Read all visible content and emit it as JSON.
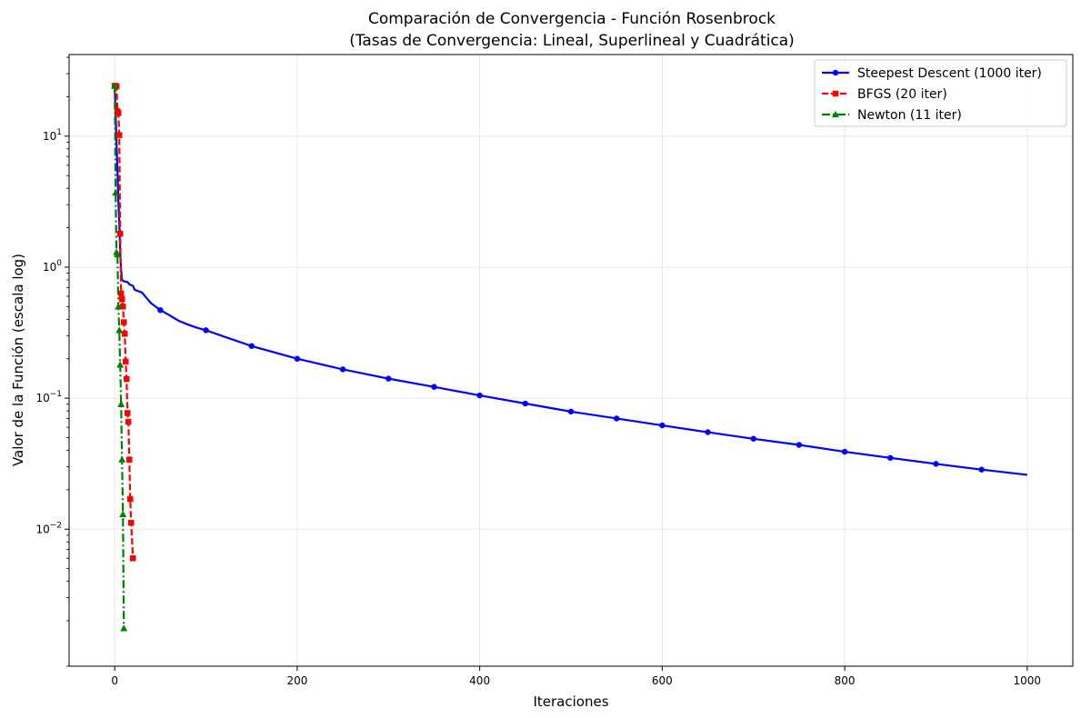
{
  "chart_data": {
    "type": "line",
    "title": "Comparación de Convergencia - Función Rosenbrock",
    "subtitle": "(Tasas de Convergencia: Lineal, Superlineal y Cuadrática)",
    "xlabel": "Iteraciones",
    "ylabel": "Valor de la Función (escala log)",
    "xlim": [
      -50,
      1050
    ],
    "ylim": [
      0.0009,
      42
    ],
    "yscale": "log",
    "grid": true,
    "legend_position": "top-right",
    "x_ticks": [
      0,
      200,
      400,
      600,
      800,
      1000
    ],
    "x_tick_labels": [
      "0",
      "200",
      "400",
      "600",
      "800",
      "1000"
    ],
    "y_ticks": [
      0.01,
      0.1,
      1,
      10
    ],
    "y_tick_labels": [
      "10",
      "10",
      "10",
      "10"
    ],
    "y_tick_exponents": [
      "−2",
      "−1",
      "0",
      "1"
    ],
    "series": [
      {
        "name": "Steepest Descent (1000 iter)",
        "color": "#0000ff",
        "linestyle": "solid",
        "marker": "circle",
        "line": [
          [
            0,
            24.2
          ],
          [
            1,
            15
          ],
          [
            2,
            9
          ],
          [
            3,
            5.5
          ],
          [
            4,
            3.2
          ],
          [
            5,
            2.2
          ],
          [
            6,
            1.3
          ],
          [
            7,
            0.95
          ],
          [
            8,
            0.8
          ],
          [
            10,
            0.78
          ],
          [
            14,
            0.77
          ],
          [
            16,
            0.74
          ],
          [
            20,
            0.72
          ],
          [
            22,
            0.67
          ],
          [
            25,
            0.66
          ],
          [
            30,
            0.64
          ],
          [
            35,
            0.58
          ],
          [
            40,
            0.53
          ],
          [
            50,
            0.47
          ],
          [
            60,
            0.43
          ],
          [
            70,
            0.39
          ],
          [
            80,
            0.365
          ],
          [
            90,
            0.345
          ],
          [
            100,
            0.33
          ],
          [
            120,
            0.295
          ],
          [
            150,
            0.25
          ],
          [
            200,
            0.2
          ],
          [
            250,
            0.166
          ],
          [
            300,
            0.141
          ],
          [
            350,
            0.122
          ],
          [
            400,
            0.105
          ],
          [
            450,
            0.091
          ],
          [
            500,
            0.079
          ],
          [
            550,
            0.07
          ],
          [
            600,
            0.062
          ],
          [
            650,
            0.055
          ],
          [
            700,
            0.049
          ],
          [
            750,
            0.044
          ],
          [
            800,
            0.039
          ],
          [
            850,
            0.035
          ],
          [
            900,
            0.0315
          ],
          [
            950,
            0.0285
          ],
          [
            1000,
            0.026
          ]
        ],
        "markers": [
          [
            0,
            24.2
          ],
          [
            50,
            0.47
          ],
          [
            100,
            0.33
          ],
          [
            150,
            0.25
          ],
          [
            200,
            0.2
          ],
          [
            250,
            0.166
          ],
          [
            300,
            0.141
          ],
          [
            350,
            0.122
          ],
          [
            400,
            0.105
          ],
          [
            450,
            0.091
          ],
          [
            500,
            0.079
          ],
          [
            550,
            0.07
          ],
          [
            600,
            0.062
          ],
          [
            650,
            0.055
          ],
          [
            700,
            0.049
          ],
          [
            750,
            0.044
          ],
          [
            800,
            0.039
          ],
          [
            850,
            0.035
          ],
          [
            900,
            0.0315
          ],
          [
            950,
            0.0285
          ]
        ]
      },
      {
        "name": "BFGS (20 iter)",
        "color": "#ff0000",
        "linestyle": "dashed",
        "marker": "square",
        "points": [
          [
            0,
            24.2
          ],
          [
            1,
            24.2
          ],
          [
            2,
            24
          ],
          [
            3,
            15.5
          ],
          [
            4,
            15
          ],
          [
            5,
            10.2
          ],
          [
            6,
            1.8
          ],
          [
            7,
            0.63
          ],
          [
            8,
            0.57
          ],
          [
            9,
            0.5
          ],
          [
            10,
            0.38
          ],
          [
            11,
            0.31
          ],
          [
            12,
            0.19
          ],
          [
            13,
            0.14
          ],
          [
            14,
            0.077
          ],
          [
            15,
            0.066
          ],
          [
            16,
            0.034
          ],
          [
            17,
            0.017
          ],
          [
            18,
            0.0112
          ],
          [
            20,
            0.006
          ]
        ]
      },
      {
        "name": "Newton (11 iter)",
        "color": "#008000",
        "linestyle": "dashdot",
        "marker": "triangle",
        "points": [
          [
            0,
            24.2
          ],
          [
            1,
            3.7
          ],
          [
            2,
            1.3
          ],
          [
            3,
            1.25
          ],
          [
            4,
            0.5
          ],
          [
            5,
            0.33
          ],
          [
            6,
            0.18
          ],
          [
            7,
            0.09
          ],
          [
            8,
            0.034
          ],
          [
            9,
            0.013
          ],
          [
            10,
            0.00175
          ]
        ]
      }
    ]
  }
}
